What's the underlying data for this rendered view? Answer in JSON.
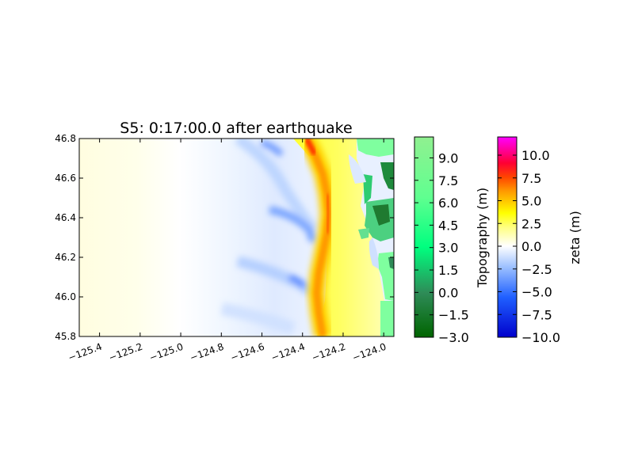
{
  "chart_data": {
    "type": "heatmap",
    "title": "S5: 0:17:00.0 after earthquake",
    "xlim": [
      -125.5,
      -123.95
    ],
    "ylim": [
      45.8,
      46.8
    ],
    "x_ticks": [
      {
        "value": -125.4,
        "label": "−125.4"
      },
      {
        "value": -125.2,
        "label": "−125.2"
      },
      {
        "value": -125.0,
        "label": "−125.0"
      },
      {
        "value": -124.8,
        "label": "−124.8"
      },
      {
        "value": -124.6,
        "label": "−124.6"
      },
      {
        "value": -124.4,
        "label": "−124.4"
      },
      {
        "value": -124.2,
        "label": "−124.2"
      },
      {
        "value": -124.0,
        "label": "−124.0"
      }
    ],
    "y_ticks": [
      {
        "value": 45.8,
        "label": "45.8"
      },
      {
        "value": 46.0,
        "label": "46.0"
      },
      {
        "value": 46.2,
        "label": "46.2"
      },
      {
        "value": 46.4,
        "label": "46.4"
      },
      {
        "value": 46.6,
        "label": "46.6"
      },
      {
        "value": 46.8,
        "label": "46.8"
      }
    ],
    "wave_front": [
      [
        -124.38,
        46.8
      ],
      [
        -124.34,
        46.72
      ],
      [
        -124.3,
        46.62
      ],
      [
        -124.28,
        46.52
      ],
      [
        -124.27,
        46.42
      ],
      [
        -124.28,
        46.32
      ],
      [
        -124.3,
        46.22
      ],
      [
        -124.32,
        46.12
      ],
      [
        -124.33,
        46.02
      ],
      [
        -124.32,
        45.92
      ],
      [
        -124.3,
        45.8
      ]
    ],
    "colorbars": [
      {
        "label": "Topography (m)",
        "range": [
          -3.0,
          10.4
        ],
        "colors": [
          "#006400",
          "#2e8b57",
          "#00ff7f",
          "#7fff9f",
          "#90ee90"
        ],
        "ticks": [
          {
            "value": -3.0,
            "label": "−3.0"
          },
          {
            "value": -1.5,
            "label": "−1.5"
          },
          {
            "value": 0.0,
            "label": "0.0"
          },
          {
            "value": 1.5,
            "label": "1.5"
          },
          {
            "value": 3.0,
            "label": "3.0"
          },
          {
            "value": 4.5,
            "label": "4.5"
          },
          {
            "value": 6.0,
            "label": "6.0"
          },
          {
            "value": 7.5,
            "label": "7.5"
          },
          {
            "value": 9.0,
            "label": "9.0"
          }
        ]
      },
      {
        "label": "zeta (m)",
        "range": [
          -10.0,
          12.0
        ],
        "colors": [
          "#0000cc",
          "#3377ff",
          "#a6c8ff",
          "#ffffff",
          "#ffff88",
          "#ffff00",
          "#ffaa00",
          "#ff5500",
          "#ff0033",
          "#ff00ff"
        ],
        "ticks": [
          {
            "value": -10.0,
            "label": "−10.0"
          },
          {
            "value": -7.5,
            "label": "−7.5"
          },
          {
            "value": -5.0,
            "label": "−5.0"
          },
          {
            "value": -2.5,
            "label": "−2.5"
          },
          {
            "value": 0.0,
            "label": "0.0"
          },
          {
            "value": 2.5,
            "label": "2.5"
          },
          {
            "value": 5.0,
            "label": "5.0"
          },
          {
            "value": 7.5,
            "label": "7.5"
          },
          {
            "value": 10.0,
            "label": "10.0"
          }
        ]
      }
    ]
  }
}
